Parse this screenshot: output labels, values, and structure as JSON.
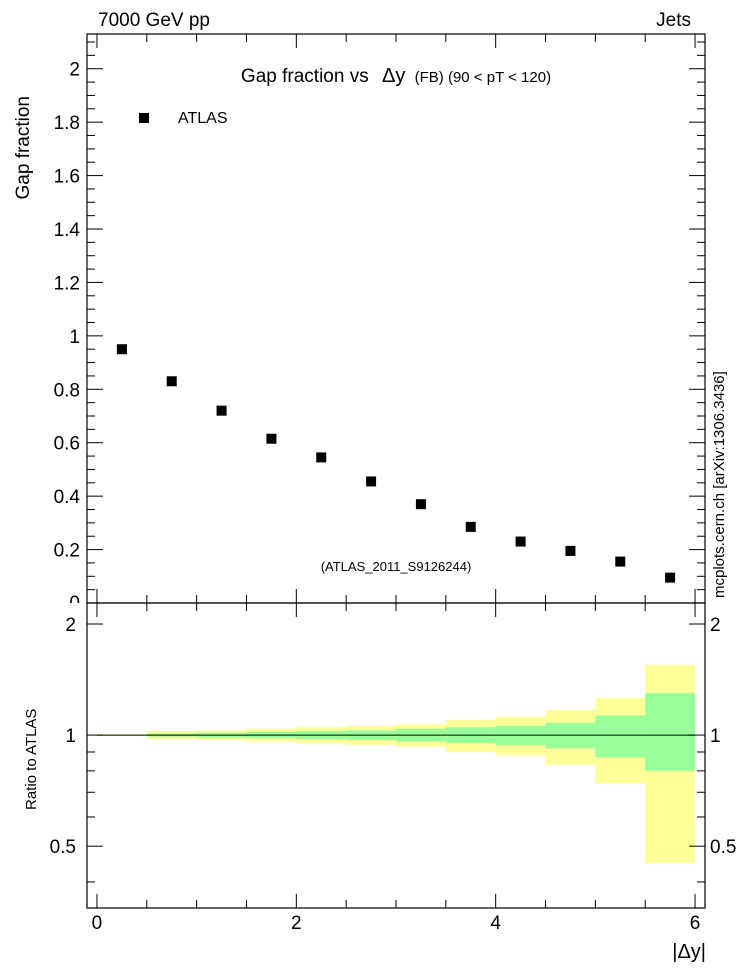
{
  "header": {
    "energy_label": "7000 GeV pp",
    "process_label": "Jets"
  },
  "side_label": "mcplots.cern.ch [arXiv:1306.3436]",
  "colors": {
    "band_outer": "#ffff99",
    "band_inner": "#99ff99",
    "marker": "#000000",
    "watermark": "#888888"
  },
  "chart_data": [
    {
      "type": "scatter",
      "title_main": "Gap fraction vs",
      "title_delta": "Δy",
      "title_sub": "(FB) (90 < pT < 120)",
      "ylabel": "Gap fraction",
      "xlabel": "",
      "xlim": [
        -0.1,
        6.1
      ],
      "ylim": [
        0,
        2.13
      ],
      "yticks": [
        0.2,
        0.4,
        0.6,
        0.8,
        1,
        1.2,
        1.4,
        1.6,
        1.8,
        2
      ],
      "ytick_labels": [
        "0.2",
        "0.4",
        "0.6",
        "0.8",
        "1",
        "1.2",
        "1.4",
        "1.6",
        "1.8",
        "2"
      ],
      "ytick_bottom_label": "0",
      "legend": {
        "marker_label": "ATLAS",
        "placement": "top-left"
      },
      "watermark": "(ATLAS_2011_S9126244)",
      "series": [
        {
          "name": "ATLAS",
          "x": [
            0.25,
            0.75,
            1.25,
            1.75,
            2.25,
            2.75,
            3.25,
            3.75,
            4.25,
            4.75,
            5.25,
            5.75
          ],
          "y": [
            0.95,
            0.83,
            0.72,
            0.615,
            0.545,
            0.455,
            0.37,
            0.285,
            0.23,
            0.195,
            0.155,
            0.095
          ]
        }
      ]
    },
    {
      "type": "area",
      "ylabel": "Ratio to ATLAS",
      "xlabel": "|Δy|",
      "xlim": [
        -0.1,
        6.1
      ],
      "ylim": [
        0.34,
        2.28
      ],
      "xticks": [
        0,
        2,
        4,
        6
      ],
      "xtick_labels": [
        "0",
        "2",
        "4",
        "6"
      ],
      "yticks": [
        0.5,
        1,
        2
      ],
      "ytick_labels": [
        "0.5",
        "1",
        "2"
      ],
      "reference_line": 1,
      "bins": [
        {
          "x0": 0.0,
          "x1": 0.5,
          "outer": [
            0.995,
            1.005
          ],
          "inner": [
            0.998,
            1.002
          ]
        },
        {
          "x0": 0.5,
          "x1": 1.0,
          "outer": [
            0.975,
            1.025
          ],
          "inner": [
            0.99,
            1.01
          ]
        },
        {
          "x0": 1.0,
          "x1": 1.5,
          "outer": [
            0.97,
            1.03
          ],
          "inner": [
            0.985,
            1.015
          ]
        },
        {
          "x0": 1.5,
          "x1": 2.0,
          "outer": [
            0.96,
            1.04
          ],
          "inner": [
            0.98,
            1.02
          ]
        },
        {
          "x0": 2.0,
          "x1": 2.5,
          "outer": [
            0.95,
            1.05
          ],
          "inner": [
            0.975,
            1.025
          ]
        },
        {
          "x0": 2.5,
          "x1": 3.0,
          "outer": [
            0.94,
            1.06
          ],
          "inner": [
            0.97,
            1.03
          ]
        },
        {
          "x0": 3.0,
          "x1": 3.5,
          "outer": [
            0.93,
            1.07
          ],
          "inner": [
            0.96,
            1.04
          ]
        },
        {
          "x0": 3.5,
          "x1": 4.0,
          "outer": [
            0.9,
            1.1
          ],
          "inner": [
            0.95,
            1.05
          ]
        },
        {
          "x0": 4.0,
          "x1": 4.5,
          "outer": [
            0.88,
            1.12
          ],
          "inner": [
            0.94,
            1.06
          ]
        },
        {
          "x0": 4.5,
          "x1": 5.0,
          "outer": [
            0.83,
            1.17
          ],
          "inner": [
            0.92,
            1.08
          ]
        },
        {
          "x0": 5.0,
          "x1": 5.5,
          "outer": [
            0.74,
            1.26
          ],
          "inner": [
            0.87,
            1.13
          ]
        },
        {
          "x0": 5.5,
          "x1": 6.0,
          "outer": [
            0.45,
            1.55
          ],
          "inner": [
            0.8,
            1.3
          ]
        }
      ]
    }
  ]
}
